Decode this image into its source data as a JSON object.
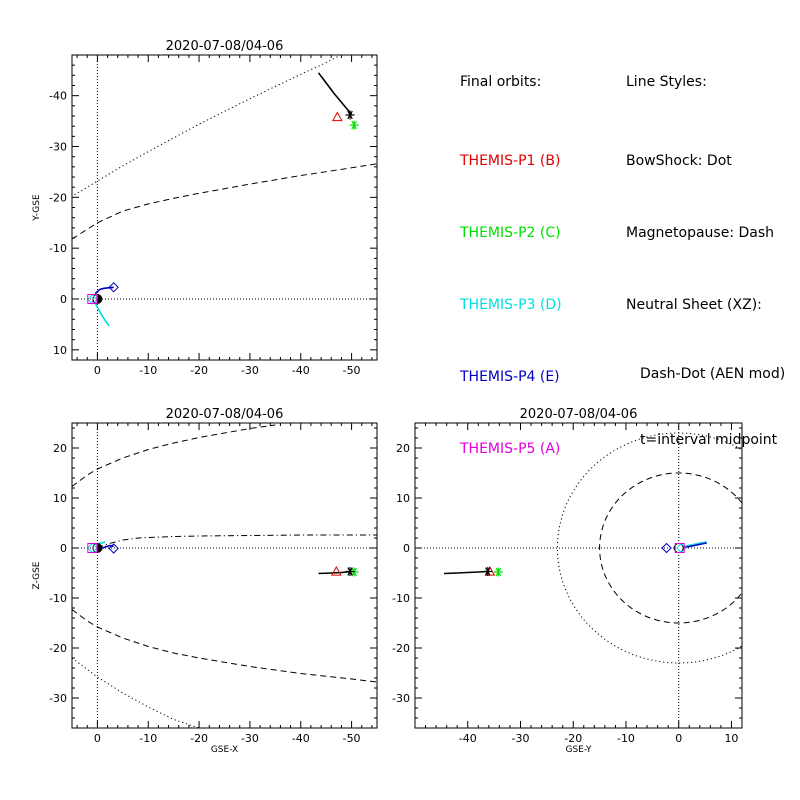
{
  "legend": {
    "heading": "Final orbits:",
    "probes": [
      {
        "label": "THEMIS-P1 (B)",
        "color": "#e00000"
      },
      {
        "label": "THEMIS-P2 (C)",
        "color": "#00e000"
      },
      {
        "label": "THEMIS-P3 (D)",
        "color": "#00e0e0"
      },
      {
        "label": "THEMIS-P4 (E)",
        "color": "#0000c0"
      },
      {
        "label": "THEMIS-P5 (A)",
        "color": "#e000e0"
      }
    ]
  },
  "line_styles": {
    "heading": "Line Styles:",
    "bowshock": "BowShock: Dot",
    "magnetopause": "Magnetopause: Dash",
    "neutral_sheet": "Neutral Sheet (XZ):",
    "neutral_sheet_detail1": "Dash-Dot (AEN mod)",
    "neutral_sheet_detail2": "t=interval midpoint"
  },
  "chart_data": [
    {
      "type": "line",
      "title": "2020-07-08/04-06",
      "xlabel": "",
      "ylabel": "Y-GSE",
      "xlim": [
        5,
        -55
      ],
      "ylim": [
        12,
        -48
      ],
      "xticks": [
        0,
        -10,
        -20,
        -30,
        -40,
        -50
      ],
      "xtick_labels": [
        "0",
        "-10",
        "-20",
        "-30",
        "-40",
        "-50"
      ],
      "yticks": [
        10,
        0,
        -10,
        -20,
        -30,
        -40
      ],
      "ytick_labels": [
        "10",
        "0",
        "-10",
        "-20",
        "-30",
        "-40"
      ],
      "series": [
        {
          "role": "bowshock",
          "style": "dot",
          "color": "#000000",
          "x": [
            4.5,
            0,
            -5,
            -10,
            -15,
            -20,
            -25,
            -30,
            -35,
            -40,
            -45,
            -47.5
          ],
          "y": [
            -20.5,
            -23.2,
            -26.2,
            -29.0,
            -31.7,
            -34.4,
            -36.9,
            -39.4,
            -41.8,
            -44.2,
            -46.5,
            -47.8
          ]
        },
        {
          "role": "magnetopause",
          "style": "dash",
          "color": "#000000",
          "x": [
            5,
            0,
            -5,
            -10,
            -15,
            -20,
            -30,
            -40,
            -50,
            -55
          ],
          "y": [
            -11.8,
            -15.0,
            -17.3,
            -18.7,
            -19.8,
            -20.8,
            -22.6,
            -24.3,
            -25.8,
            -26.6
          ]
        },
        {
          "role": "orbit-P1-P2",
          "style": "solid",
          "color": "#000000",
          "x": [
            -43.5,
            -45,
            -46.5,
            -48,
            -49,
            -50
          ],
          "y": [
            -44.5,
            -42.5,
            -40.5,
            -38.7,
            -37.5,
            -36.3
          ]
        },
        {
          "role": "orbit-P3",
          "style": "solid",
          "color": "#00e0e0",
          "x": [
            0.7,
            -0.2,
            -1.0,
            -1.8,
            -2.3
          ],
          "y": [
            0.3,
            2.0,
            3.4,
            4.6,
            5.3
          ]
        },
        {
          "role": "orbit-P4",
          "style": "solid",
          "color": "#0000c0",
          "x": [
            0.6,
            0.3,
            -0.5,
            -1.3,
            -2.3,
            -3.2
          ],
          "y": [
            0.3,
            -1.2,
            -1.9,
            -2.1,
            -2.2,
            -2.3
          ]
        },
        {
          "role": "orbit-P5",
          "style": "solid",
          "color": "#e000e0",
          "x": [
            0.5,
            0.9,
            1.0
          ],
          "y": [
            0.4,
            0.5,
            0.6
          ]
        }
      ],
      "markers": [
        {
          "probe": "P1",
          "symbol": "triangle",
          "color": "#e00000",
          "x": -47.2,
          "y": -35.8
        },
        {
          "probe": "P2",
          "symbol": "asterisk",
          "color": "#00e000",
          "x": -50.5,
          "y": -34.2
        },
        {
          "probe": "P1-P2",
          "symbol": "asterisk",
          "color": "#000000",
          "x": -49.7,
          "y": -36.2
        },
        {
          "probe": "P3",
          "symbol": "diamond",
          "color": "#0000c0",
          "x": -3.2,
          "y": -2.3
        },
        {
          "probe": "P4",
          "symbol": "diamond",
          "color": "#00e0e0",
          "x": 1.0,
          "y": 0.1
        },
        {
          "probe": "P5",
          "symbol": "square",
          "color": "#e000e0",
          "x": 1.0,
          "y": 0.0
        }
      ]
    },
    {
      "type": "line",
      "title": "2020-07-08/04-06",
      "xlabel": "GSE-X",
      "ylabel": "Z-GSE",
      "xlim": [
        5,
        -55
      ],
      "ylim": [
        -36,
        25
      ],
      "xticks": [
        0,
        -10,
        -20,
        -30,
        -40,
        -50
      ],
      "xtick_labels": [
        "0",
        "-10",
        "-20",
        "-30",
        "-40",
        "-50"
      ],
      "yticks": [
        -30,
        -20,
        -10,
        0,
        10,
        20
      ],
      "ytick_labels": [
        "-30",
        "-20",
        "-10",
        "0",
        "10",
        "20"
      ],
      "series": [
        {
          "role": "magnetopause-north",
          "style": "dash",
          "color": "#000000",
          "x": [
            5,
            2,
            0,
            -5,
            -10,
            -15,
            -20,
            -25,
            -30,
            -35
          ],
          "y": [
            12.3,
            14.6,
            15.8,
            18.0,
            19.7,
            21.0,
            22.1,
            23.0,
            23.9,
            24.6
          ]
        },
        {
          "role": "magnetopause-south",
          "style": "dash",
          "color": "#000000",
          "x": [
            5,
            2,
            0,
            -5,
            -10,
            -15,
            -20,
            -30,
            -40,
            -50,
            -55
          ],
          "y": [
            -12.3,
            -14.6,
            -15.8,
            -18.0,
            -19.7,
            -21.0,
            -22.0,
            -23.7,
            -25.1,
            -26.2,
            -26.8
          ]
        },
        {
          "role": "bowshock-south",
          "style": "dot",
          "color": "#000000",
          "x": [
            5,
            0,
            -5,
            -10,
            -15,
            -20
          ],
          "y": [
            -22.0,
            -25.8,
            -29.0,
            -31.8,
            -34.3,
            -36.0
          ]
        },
        {
          "role": "neutral-sheet",
          "style": "dashdot",
          "color": "#000000",
          "x": [
            0,
            -2,
            -5,
            -8,
            -10,
            -15,
            -20,
            -30,
            -40,
            -50,
            -55
          ],
          "y": [
            0.0,
            0.8,
            1.6,
            2.0,
            2.1,
            2.3,
            2.4,
            2.5,
            2.6,
            2.6,
            2.6
          ]
        },
        {
          "role": "orbit-P1-P2",
          "style": "solid",
          "color": "#000000",
          "x": [
            -43.5,
            -46,
            -48,
            -50
          ],
          "y": [
            -5.1,
            -5.0,
            -4.9,
            -4.7
          ]
        },
        {
          "role": "orbit-P3",
          "style": "solid",
          "color": "#00e0e0",
          "x": [
            0.8,
            0.4,
            0.0,
            -0.8,
            -1.5
          ],
          "y": [
            0.1,
            0.5,
            0.8,
            1.0,
            1.2
          ]
        },
        {
          "role": "orbit-P4",
          "style": "solid",
          "color": "#0000c0",
          "x": [
            0.6,
            -0.5,
            -1.5,
            -2.5,
            -3.2
          ],
          "y": [
            0.0,
            -0.2,
            0.2,
            0.5,
            0.3
          ]
        }
      ],
      "markers": [
        {
          "probe": "P1",
          "symbol": "triangle",
          "color": "#e00000",
          "x": -47.0,
          "y": -4.7
        },
        {
          "probe": "P2",
          "symbol": "asterisk",
          "color": "#00e000",
          "x": -50.5,
          "y": -4.8
        },
        {
          "probe": "P1-P2",
          "symbol": "asterisk",
          "color": "#000000",
          "x": -49.7,
          "y": -4.7
        },
        {
          "probe": "P3",
          "symbol": "diamond",
          "color": "#0000c0",
          "x": -3.2,
          "y": -0.1
        },
        {
          "probe": "P4",
          "symbol": "diamond",
          "color": "#00e0e0",
          "x": 1.0,
          "y": 0.0
        },
        {
          "probe": "P5",
          "symbol": "square",
          "color": "#e000e0",
          "x": 1.0,
          "y": 0.0
        }
      ]
    },
    {
      "type": "line",
      "title": "2020-07-08/04-06",
      "xlabel": "GSE-Y",
      "ylabel": "",
      "xlim": [
        -50,
        12
      ],
      "ylim": [
        -36,
        25
      ],
      "xticks": [
        -40,
        -30,
        -20,
        -10,
        0,
        10
      ],
      "xtick_labels": [
        "-40",
        "-30",
        "-20",
        "-10",
        "0",
        "10"
      ],
      "yticks": [
        -30,
        -20,
        -10,
        0,
        10,
        20
      ],
      "ytick_labels": [
        "-30",
        "-20",
        "-10",
        "0",
        "10",
        "20"
      ],
      "circles": [
        {
          "role": "bowshock",
          "style": "dot",
          "cx": 0,
          "cy": 0,
          "r": 23
        },
        {
          "role": "magnetopause",
          "style": "dash",
          "cx": 0,
          "cy": 0,
          "r": 15
        }
      ],
      "series": [
        {
          "role": "orbit-P1-P2",
          "style": "solid",
          "color": "#000000",
          "x": [
            -44.5,
            -42,
            -40,
            -38,
            -36.3
          ],
          "y": [
            -5.1,
            -5.0,
            -4.9,
            -4.8,
            -4.7
          ]
        },
        {
          "role": "orbit-P3",
          "style": "solid",
          "color": "#00e0e0",
          "x": [
            0.3,
            1.5,
            2.8,
            4.0,
            5.3
          ],
          "y": [
            0.1,
            0.4,
            0.7,
            1.0,
            1.2
          ]
        },
        {
          "role": "orbit-P4",
          "style": "solid",
          "color": "#0000c0",
          "x": [
            0.3,
            1.5,
            3.0,
            4.3,
            5.3
          ],
          "y": [
            -0.1,
            0.2,
            0.5,
            0.8,
            1.0
          ]
        },
        {
          "role": "orbit-P5",
          "style": "solid",
          "color": "#e000e0",
          "x": [
            0.3,
            0.6,
            0.9
          ],
          "y": [
            0.2,
            0.2,
            0.3
          ]
        }
      ],
      "markers": [
        {
          "probe": "P1",
          "symbol": "triangle",
          "color": "#e00000",
          "x": -35.8,
          "y": -4.7
        },
        {
          "probe": "P2",
          "symbol": "asterisk",
          "color": "#00e000",
          "x": -34.2,
          "y": -4.8
        },
        {
          "probe": "P1-P2",
          "symbol": "asterisk",
          "color": "#000000",
          "x": -36.2,
          "y": -4.7
        },
        {
          "probe": "P3",
          "symbol": "diamond",
          "color": "#0000c0",
          "x": -2.3,
          "y": 0.0
        },
        {
          "probe": "P4",
          "symbol": "diamond",
          "color": "#00e0e0",
          "x": 0.5,
          "y": 0.0
        },
        {
          "probe": "P5",
          "symbol": "square",
          "color": "#e000e0",
          "x": 0.2,
          "y": 0.0
        }
      ]
    }
  ]
}
